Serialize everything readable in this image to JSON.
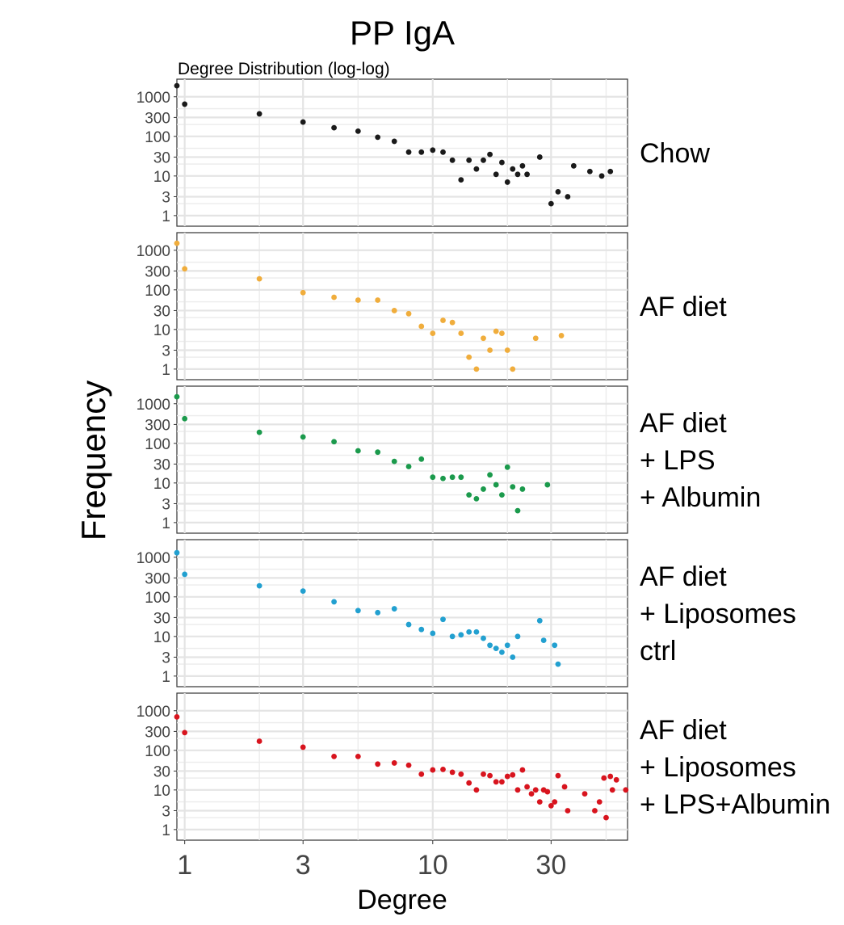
{
  "chart_data": {
    "type": "scatter",
    "title": "PP IgA",
    "subtitle": "Degree Distribution (log-log)",
    "xlabel": "Degree",
    "ylabel": "Frequency",
    "x_scale": "log",
    "y_scale": "log",
    "xlim": [
      0.93,
      61
    ],
    "ylim": [
      0.75,
      2000
    ],
    "x_ticks": [
      1,
      3,
      10,
      30
    ],
    "y_ticks": [
      1,
      3,
      10,
      30,
      100,
      300,
      1000
    ],
    "grid": true,
    "legend": "none",
    "series": [
      {
        "name": "Chow",
        "label_lines": [
          "Chow"
        ],
        "color": "#1a1a1a",
        "points": [
          [
            0.93,
            1900
          ],
          [
            1,
            650
          ],
          [
            2,
            370
          ],
          [
            3,
            230
          ],
          [
            4,
            165
          ],
          [
            5,
            135
          ],
          [
            6,
            95
          ],
          [
            7,
            75
          ],
          [
            8,
            40
          ],
          [
            9,
            40
          ],
          [
            10,
            45
          ],
          [
            11,
            40
          ],
          [
            12,
            25
          ],
          [
            13,
            8
          ],
          [
            14,
            25
          ],
          [
            15,
            15
          ],
          [
            16,
            25
          ],
          [
            17,
            35
          ],
          [
            18,
            11
          ],
          [
            19,
            22
          ],
          [
            20,
            7
          ],
          [
            21,
            15
          ],
          [
            22,
            11
          ],
          [
            23,
            18
          ],
          [
            24,
            11
          ],
          [
            27,
            30
          ],
          [
            30,
            2
          ],
          [
            32,
            4
          ],
          [
            35,
            3
          ],
          [
            37,
            18
          ],
          [
            43,
            13
          ],
          [
            48,
            10
          ],
          [
            52,
            13
          ]
        ]
      },
      {
        "name": "AF diet",
        "label_lines": [
          "AF diet"
        ],
        "color": "#f0ad3c",
        "points": [
          [
            0.93,
            1500
          ],
          [
            1,
            340
          ],
          [
            2,
            190
          ],
          [
            3,
            85
          ],
          [
            4,
            65
          ],
          [
            5,
            55
          ],
          [
            6,
            55
          ],
          [
            7,
            30
          ],
          [
            8,
            25
          ],
          [
            9,
            12
          ],
          [
            10,
            8
          ],
          [
            11,
            17
          ],
          [
            12,
            15
          ],
          [
            13,
            8
          ],
          [
            14,
            2
          ],
          [
            15,
            1
          ],
          [
            16,
            6
          ],
          [
            17,
            3
          ],
          [
            18,
            9
          ],
          [
            19,
            8
          ],
          [
            20,
            3
          ],
          [
            21,
            1
          ],
          [
            26,
            6
          ],
          [
            33,
            7
          ]
        ]
      },
      {
        "name": "AF diet + LPS + Albumin",
        "label_lines": [
          "AF diet",
          "+ LPS",
          "+ Albumin"
        ],
        "color": "#1b9a4c",
        "points": [
          [
            0.93,
            1500
          ],
          [
            1,
            420
          ],
          [
            2,
            190
          ],
          [
            3,
            145
          ],
          [
            4,
            110
          ],
          [
            5,
            65
          ],
          [
            6,
            60
          ],
          [
            7,
            35
          ],
          [
            8,
            26
          ],
          [
            9,
            40
          ],
          [
            10,
            14
          ],
          [
            11,
            13
          ],
          [
            12,
            14
          ],
          [
            13,
            14
          ],
          [
            14,
            5
          ],
          [
            15,
            4
          ],
          [
            16,
            7
          ],
          [
            17,
            16
          ],
          [
            18,
            9
          ],
          [
            19,
            5
          ],
          [
            20,
            25
          ],
          [
            21,
            8
          ],
          [
            22,
            2
          ],
          [
            23,
            7
          ],
          [
            29,
            9
          ]
        ]
      },
      {
        "name": "AF diet + Liposomes ctrl",
        "label_lines": [
          "AF diet",
          "+ Liposomes",
          "ctrl"
        ],
        "color": "#22a0d0",
        "points": [
          [
            0.93,
            1300
          ],
          [
            1,
            370
          ],
          [
            2,
            190
          ],
          [
            3,
            140
          ],
          [
            4,
            75
          ],
          [
            5,
            45
          ],
          [
            6,
            40
          ],
          [
            7,
            50
          ],
          [
            8,
            20
          ],
          [
            9,
            15
          ],
          [
            10,
            12
          ],
          [
            11,
            27
          ],
          [
            12,
            10
          ],
          [
            13,
            11
          ],
          [
            14,
            13
          ],
          [
            15,
            13
          ],
          [
            16,
            9
          ],
          [
            17,
            6
          ],
          [
            18,
            5
          ],
          [
            19,
            4
          ],
          [
            20,
            6
          ],
          [
            21,
            3
          ],
          [
            22,
            10
          ],
          [
            27,
            25
          ],
          [
            28,
            8
          ],
          [
            31,
            6
          ],
          [
            32,
            2
          ]
        ]
      },
      {
        "name": "AF diet + Liposomes + LPS+Albumin",
        "label_lines": [
          "AF diet",
          "+ Liposomes",
          "+ LPS+Albumin"
        ],
        "color": "#d8141e",
        "points": [
          [
            0.93,
            700
          ],
          [
            1,
            280
          ],
          [
            2,
            170
          ],
          [
            3,
            120
          ],
          [
            4,
            70
          ],
          [
            5,
            70
          ],
          [
            6,
            45
          ],
          [
            7,
            48
          ],
          [
            8,
            42
          ],
          [
            9,
            25
          ],
          [
            10,
            32
          ],
          [
            11,
            33
          ],
          [
            12,
            28
          ],
          [
            13,
            25
          ],
          [
            14,
            15
          ],
          [
            15,
            10
          ],
          [
            16,
            25
          ],
          [
            17,
            23
          ],
          [
            18,
            16
          ],
          [
            19,
            16
          ],
          [
            20,
            22
          ],
          [
            21,
            24
          ],
          [
            22,
            10
          ],
          [
            23,
            32
          ],
          [
            24,
            12
          ],
          [
            25,
            8
          ],
          [
            26,
            10
          ],
          [
            27,
            5
          ],
          [
            28,
            10
          ],
          [
            29,
            9
          ],
          [
            30,
            4
          ],
          [
            31,
            5
          ],
          [
            32,
            23
          ],
          [
            34,
            12
          ],
          [
            35,
            3
          ],
          [
            41,
            8
          ],
          [
            45,
            3
          ],
          [
            47,
            5
          ],
          [
            49,
            20
          ],
          [
            50,
            2
          ],
          [
            52,
            22
          ],
          [
            53,
            10
          ],
          [
            55,
            18
          ],
          [
            60,
            10
          ]
        ]
      }
    ]
  }
}
